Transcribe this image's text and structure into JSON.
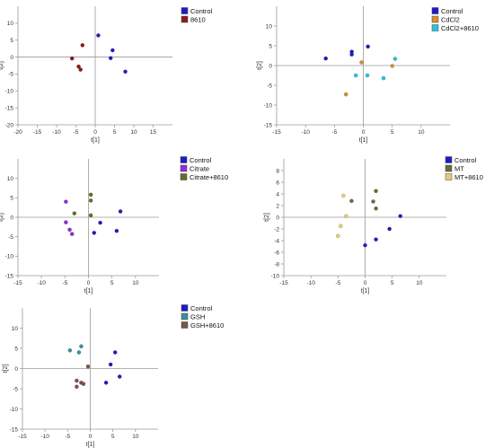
{
  "chart_data": [
    {
      "type": "scatter",
      "xlabel": "t[1]",
      "ylabel": "t[2]",
      "xlim": [
        -20,
        20
      ],
      "ylim": [
        -20,
        15
      ],
      "xticks": [
        -20,
        -15,
        -10,
        -5,
        0,
        5,
        10,
        15
      ],
      "yticks": [
        -20,
        -15,
        -10,
        -5,
        0,
        5,
        10
      ],
      "grid": false,
      "legend_position": "top-right",
      "series": [
        {
          "name": "Control",
          "color": "#1c1cc8",
          "points": [
            [
              0.8,
              6.4
            ],
            [
              4.5,
              2.0
            ],
            [
              4.0,
              -0.3
            ],
            [
              7.8,
              -4.3
            ]
          ]
        },
        {
          "name": "8610",
          "color": "#8b1a1a",
          "points": [
            [
              -3.3,
              3.5
            ],
            [
              -6.0,
              -0.4
            ],
            [
              -4.3,
              -2.8
            ],
            [
              -3.8,
              -3.7
            ]
          ]
        }
      ]
    },
    {
      "type": "scatter",
      "xlabel": "t[1]",
      "ylabel": "t[2]",
      "xlim": [
        -15,
        15
      ],
      "ylim": [
        -15,
        15
      ],
      "xticks": [
        -15,
        -10,
        -5,
        0,
        5,
        10
      ],
      "yticks": [
        -15,
        -10,
        -5,
        0,
        5,
        10
      ],
      "grid": false,
      "legend_position": "top-right",
      "series": [
        {
          "name": "Control",
          "color": "#1c1cc8",
          "points": [
            [
              0.8,
              4.8
            ],
            [
              -2.0,
              3.5
            ],
            [
              -2.0,
              2.8
            ],
            [
              -6.5,
              1.8
            ]
          ]
        },
        {
          "name": "CdCl2",
          "color": "#d9902a",
          "points": [
            [
              -0.3,
              0.8
            ],
            [
              5.0,
              -0.1
            ],
            [
              -3.0,
              -7.3
            ]
          ]
        },
        {
          "name": "CdCl2+8610",
          "color": "#25c6dc",
          "points": [
            [
              5.5,
              1.7
            ],
            [
              -1.3,
              -2.5
            ],
            [
              0.7,
              -2.5
            ],
            [
              3.5,
              -3.2
            ]
          ]
        }
      ]
    },
    {
      "type": "scatter",
      "xlabel": "t[1]",
      "ylabel": "t[2]",
      "xlim": [
        -15,
        15
      ],
      "ylim": [
        -15,
        15
      ],
      "xticks": [
        -15,
        -10,
        -5,
        0,
        5,
        10
      ],
      "yticks": [
        -15,
        -10,
        -5,
        0,
        5,
        10
      ],
      "grid": false,
      "legend_position": "top-right",
      "series": [
        {
          "name": "Control",
          "color": "#1c1cc8",
          "points": [
            [
              6.8,
              1.5
            ],
            [
              2.5,
              -1.4
            ],
            [
              1.2,
              -4.0
            ],
            [
              6.0,
              -3.5
            ]
          ]
        },
        {
          "name": "Citrate",
          "color": "#8e2ce0",
          "points": [
            [
              -4.8,
              4.0
            ],
            [
              -4.8,
              -1.3
            ],
            [
              -4.0,
              -3.2
            ],
            [
              -3.5,
              -4.3
            ]
          ]
        },
        {
          "name": "Citrate+8610",
          "color": "#6a6a2a",
          "points": [
            [
              0.5,
              5.8
            ],
            [
              0.5,
              4.3
            ],
            [
              -3.0,
              1.0
            ],
            [
              0.5,
              0.5
            ]
          ]
        }
      ]
    },
    {
      "type": "scatter",
      "xlabel": "t[1]",
      "ylabel": "t[2]",
      "xlim": [
        -15,
        15
      ],
      "ylim": [
        -10,
        10
      ],
      "xticks": [
        -15,
        -10,
        -5,
        0,
        5,
        10
      ],
      "yticks": [
        -10,
        -8,
        -6,
        -4,
        -2,
        0,
        2,
        4,
        6,
        8
      ],
      "grid": false,
      "legend_position": "top-right",
      "series": [
        {
          "name": "Control",
          "color": "#1c1cc8",
          "points": [
            [
              6.5,
              0.2
            ],
            [
              4.5,
              -2.0
            ],
            [
              2.0,
              -3.8
            ],
            [
              0.0,
              -4.8
            ]
          ]
        },
        {
          "name": "MT",
          "color": "#6b6b35",
          "points": [
            [
              2.0,
              4.5
            ],
            [
              1.5,
              2.7
            ],
            [
              -2.5,
              2.8
            ],
            [
              2.0,
              1.5
            ]
          ]
        },
        {
          "name": "MT+8610",
          "color": "#e6cd74",
          "points": [
            [
              -4.0,
              3.7
            ],
            [
              -3.5,
              0.2
            ],
            [
              -4.5,
              -1.5
            ],
            [
              -5.0,
              -3.2
            ]
          ]
        }
      ]
    },
    {
      "type": "scatter",
      "xlabel": "t[1]",
      "ylabel": "t[2]",
      "xlim": [
        -15,
        15
      ],
      "ylim": [
        -15,
        15
      ],
      "xticks": [
        -15,
        -10,
        -5,
        0,
        5,
        10
      ],
      "yticks": [
        -15,
        -10,
        -5,
        0,
        5,
        10
      ],
      "grid": false,
      "legend_position": "top-right",
      "series": [
        {
          "name": "Control",
          "color": "#1c1cc8",
          "points": [
            [
              5.5,
              4.0
            ],
            [
              4.5,
              1.0
            ],
            [
              6.5,
              -2.0
            ],
            [
              3.5,
              -3.5
            ]
          ]
        },
        {
          "name": "GSH",
          "color": "#3d8fa3",
          "points": [
            [
              -2.0,
              5.5
            ],
            [
              -4.5,
              4.5
            ],
            [
              -2.5,
              4.0
            ]
          ]
        },
        {
          "name": "GSH+8610",
          "color": "#7a5548",
          "points": [
            [
              -0.5,
              0.5
            ],
            [
              -3.0,
              -3.0
            ],
            [
              -2.0,
              -3.5
            ],
            [
              -1.5,
              -3.8
            ],
            [
              -3.0,
              -4.5
            ]
          ]
        }
      ]
    }
  ]
}
